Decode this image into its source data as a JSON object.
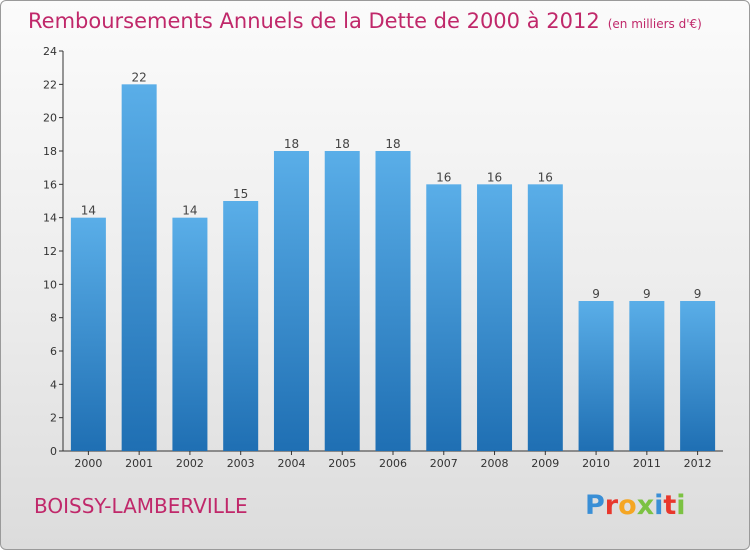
{
  "title": "Remboursements Annuels de la Dette de 2000 à 2012",
  "unit_note": "(en milliers d'€)",
  "commune": "BOISSY-LAMBERVILLE",
  "logo": {
    "letters": [
      "P",
      "r",
      "o",
      "x",
      "i",
      "t",
      "i"
    ],
    "colors": [
      "#3a8fd6",
      "#e8372c",
      "#f5a623",
      "#7cc242",
      "#3a8fd6",
      "#e8372c",
      "#7cc242"
    ]
  },
  "colors": {
    "title": "#c0286a",
    "bar_top": "#5aaee8",
    "bar_bottom": "#1f6fb3",
    "axis": "#333333",
    "grid": "#cccccc"
  },
  "chart_data": {
    "type": "bar",
    "categories": [
      "2000",
      "2001",
      "2002",
      "2003",
      "2004",
      "2005",
      "2006",
      "2007",
      "2008",
      "2009",
      "2010",
      "2011",
      "2012"
    ],
    "values": [
      14,
      22,
      14,
      15,
      18,
      18,
      18,
      16,
      16,
      16,
      9,
      9,
      9
    ],
    "ylim": [
      0,
      24
    ],
    "yticks": [
      0,
      2,
      4,
      6,
      8,
      10,
      12,
      14,
      16,
      18,
      20,
      22,
      24
    ],
    "title": "Remboursements Annuels de la Dette de 2000 à 2012",
    "xlabel": "",
    "ylabel": "",
    "grid": false,
    "data_labels": true
  }
}
